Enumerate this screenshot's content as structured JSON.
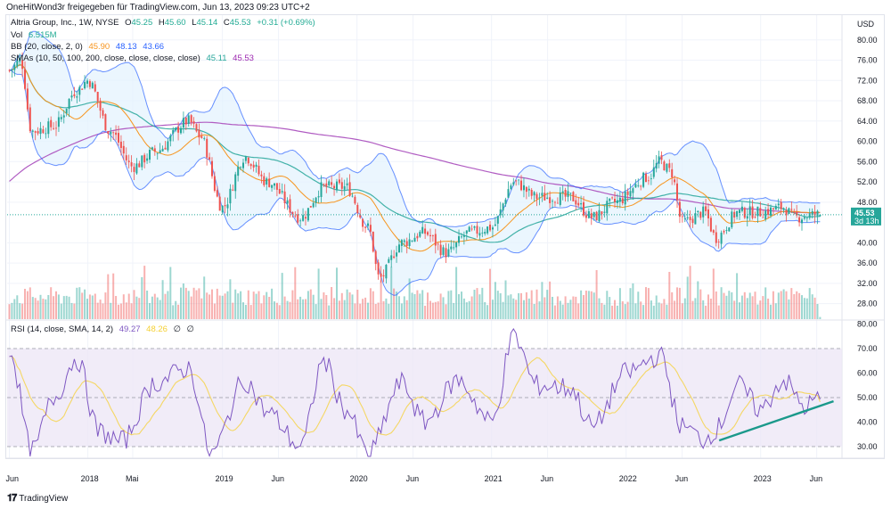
{
  "header": {
    "attribution": "OneHitWond3r freigegeben für TradingView.com, Jun 13, 2023 09:23 UTC+2"
  },
  "symbol": {
    "name": "Altria Group, Inc., 1W, NYSE",
    "open_label": "O",
    "open": "45.25",
    "high_label": "H",
    "high": "45.60",
    "low_label": "L",
    "low": "45.14",
    "close_label": "C",
    "close": "45.53",
    "change": "+0.31 (+0.69%)"
  },
  "indicators": {
    "vol": {
      "label": "Vol",
      "value": "6.515M"
    },
    "bb": {
      "label": "BB (20, close, 2, 0)",
      "basis": "45.90",
      "upper": "48.13",
      "lower": "43.66"
    },
    "smas": {
      "label": "SMAs (10, 50, 100, 200, close, close, close, close)",
      "v1": "45.11",
      "v2": "45.53"
    },
    "rsi": {
      "label": "RSI (14, close, SMA, 14, 2)",
      "value": "49.27",
      "ma": "48.26",
      "e1": "∅",
      "e2": "∅"
    }
  },
  "price_axis": {
    "currency": "USD",
    "current_price": "45.53",
    "countdown": "3d 13h"
  },
  "footer": {
    "brand": "TradingView",
    "logo_icon": "tradingview-logo-icon"
  },
  "colors": {
    "up": "#26a69a",
    "down": "#ef5350",
    "bb": "#2962ff",
    "bb_fill": "#e3f2fd",
    "sma_orange": "#f7941d",
    "sma_teal": "#26a69a",
    "sma_purple": "#b05cc2",
    "rsi_line": "#7e57c2",
    "rsi_ma": "#f5d033",
    "rsi_band": "#ede7f6",
    "trendline": "#1b998b"
  },
  "chart_data": [
    {
      "type": "candlestick",
      "title": "Altria Group, Inc., 1W, NYSE",
      "ylabel": "USD",
      "ylim": [
        26,
        84
      ],
      "y_ticks": [
        "80.00",
        "76.00",
        "72.00",
        "68.00",
        "64.00",
        "60.00",
        "56.00",
        "52.00",
        "48.00",
        "40.00",
        "36.00",
        "32.00",
        "28.00"
      ],
      "x_ticks": [
        "Jun",
        "2018",
        "Mai",
        "2019",
        "Jun",
        "2020",
        "Jun",
        "2021",
        "Jun",
        "2022",
        "Jun",
        "2023",
        "Jun"
      ],
      "period": "weekly, approx. Jun 2017 – Jun 2023",
      "price_path_keypoints": [
        {
          "t": "2017-06",
          "close": 74
        },
        {
          "t": "2017-07",
          "close": 76
        },
        {
          "t": "2017-08",
          "close": 62
        },
        {
          "t": "2017-10",
          "close": 63
        },
        {
          "t": "2017-12",
          "close": 70
        },
        {
          "t": "2018-01",
          "close": 72
        },
        {
          "t": "2018-03",
          "close": 62
        },
        {
          "t": "2018-05",
          "close": 55
        },
        {
          "t": "2018-07",
          "close": 58
        },
        {
          "t": "2018-10",
          "close": 64
        },
        {
          "t": "2018-11",
          "close": 61
        },
        {
          "t": "2019-01",
          "close": 47
        },
        {
          "t": "2019-03",
          "close": 57
        },
        {
          "t": "2019-05",
          "close": 52
        },
        {
          "t": "2019-08",
          "close": 45
        },
        {
          "t": "2019-10",
          "close": 51
        },
        {
          "t": "2019-12",
          "close": 51
        },
        {
          "t": "2020-02",
          "close": 43
        },
        {
          "t": "2020-03",
          "close": 33
        },
        {
          "t": "2020-05",
          "close": 40
        },
        {
          "t": "2020-07",
          "close": 42
        },
        {
          "t": "2020-09",
          "close": 38
        },
        {
          "t": "2020-11",
          "close": 42
        },
        {
          "t": "2021-01",
          "close": 43
        },
        {
          "t": "2021-03",
          "close": 52
        },
        {
          "t": "2021-05",
          "close": 49
        },
        {
          "t": "2021-08",
          "close": 49
        },
        {
          "t": "2021-10",
          "close": 45
        },
        {
          "t": "2021-12",
          "close": 48
        },
        {
          "t": "2022-03",
          "close": 53
        },
        {
          "t": "2022-04",
          "close": 56
        },
        {
          "t": "2022-05",
          "close": 54
        },
        {
          "t": "2022-06",
          "close": 44
        },
        {
          "t": "2022-08",
          "close": 46
        },
        {
          "t": "2022-09",
          "close": 41
        },
        {
          "t": "2022-11",
          "close": 46
        },
        {
          "t": "2023-01",
          "close": 46
        },
        {
          "t": "2023-03",
          "close": 47
        },
        {
          "t": "2023-04",
          "close": 45
        },
        {
          "t": "2023-06",
          "close": 45.53
        }
      ],
      "last": {
        "open": 45.25,
        "high": 45.6,
        "low": 45.14,
        "close": 45.53
      },
      "overlays": [
        "Bollinger Bands (20, 2)",
        "SMA 10",
        "SMA 50",
        "SMA 200"
      ]
    },
    {
      "type": "bar",
      "title": "Volume",
      "last_value": "6.515M"
    },
    {
      "type": "line",
      "title": "RSI (14, close, SMA, 14, 2)",
      "ylim": [
        26,
        82
      ],
      "y_ticks": [
        "80.00",
        "70.00",
        "60.00",
        "50.00",
        "40.00",
        "30.00"
      ],
      "bands": [
        30,
        50,
        70
      ],
      "last_rsi": 49.27,
      "last_rsi_ma": 48.26,
      "rsi_keypoints": [
        {
          "t": "2017-06",
          "v": 70
        },
        {
          "t": "2017-08",
          "v": 28
        },
        {
          "t": "2017-10",
          "v": 50
        },
        {
          "t": "2017-12",
          "v": 66
        },
        {
          "t": "2018-02",
          "v": 36
        },
        {
          "t": "2018-04",
          "v": 32
        },
        {
          "t": "2018-07",
          "v": 56
        },
        {
          "t": "2018-10",
          "v": 62
        },
        {
          "t": "2018-12",
          "v": 27
        },
        {
          "t": "2019-03",
          "v": 57
        },
        {
          "t": "2019-05",
          "v": 44
        },
        {
          "t": "2019-08",
          "v": 30
        },
        {
          "t": "2019-10",
          "v": 65
        },
        {
          "t": "2019-12",
          "v": 45
        },
        {
          "t": "2020-02",
          "v": 27
        },
        {
          "t": "2020-05",
          "v": 56
        },
        {
          "t": "2020-07",
          "v": 40
        },
        {
          "t": "2020-10",
          "v": 57
        },
        {
          "t": "2021-01",
          "v": 40
        },
        {
          "t": "2021-03",
          "v": 75
        },
        {
          "t": "2021-05",
          "v": 55
        },
        {
          "t": "2021-08",
          "v": 54
        },
        {
          "t": "2021-10",
          "v": 38
        },
        {
          "t": "2022-01",
          "v": 60
        },
        {
          "t": "2022-04",
          "v": 67
        },
        {
          "t": "2022-06",
          "v": 38
        },
        {
          "t": "2022-08",
          "v": 33
        },
        {
          "t": "2022-09",
          "v": 37
        },
        {
          "t": "2022-11",
          "v": 55
        },
        {
          "t": "2023-01",
          "v": 45
        },
        {
          "t": "2023-03",
          "v": 57
        },
        {
          "t": "2023-05",
          "v": 46
        },
        {
          "t": "2023-06",
          "v": 49.27
        }
      ],
      "annotation": "ascending trendline under RSI lows, Sep 2022 – Jun 2023"
    }
  ]
}
